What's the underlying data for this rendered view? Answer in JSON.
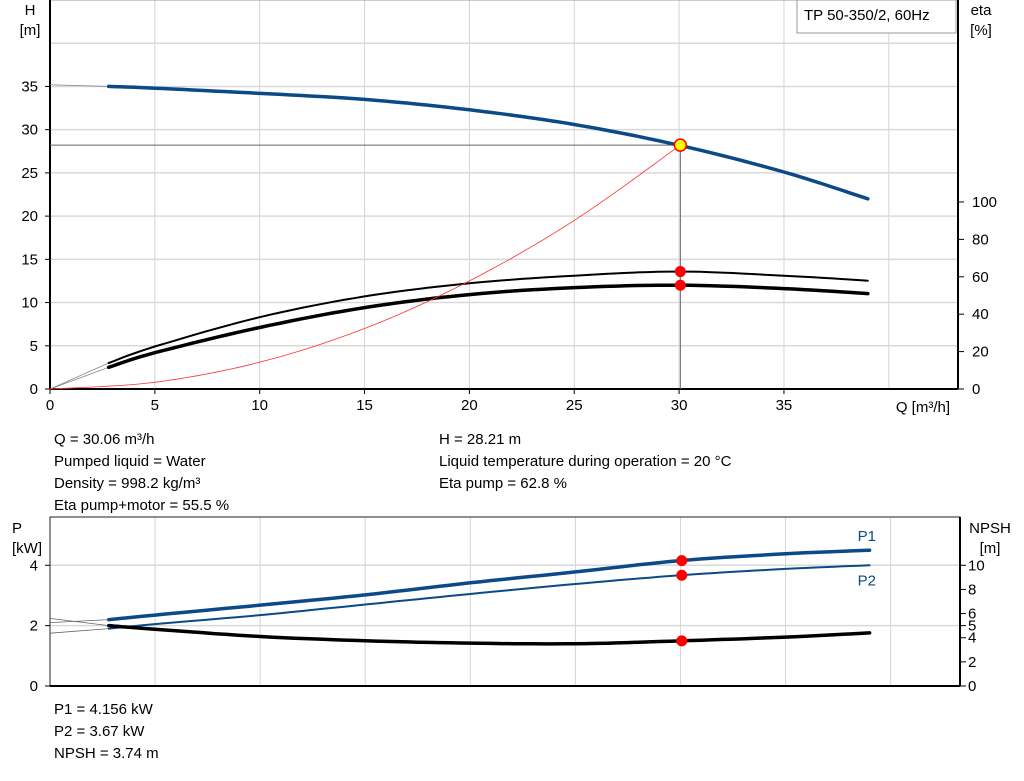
{
  "chart_data": [
    {
      "type": "line",
      "title": "TP 50-350/2, 60Hz",
      "xlabel": "Q [m³/h]",
      "ylabel": "H\n[m]",
      "y2label": "eta\n[%]",
      "xlim": [
        0,
        43.3
      ],
      "ylim": [
        0,
        45
      ],
      "y2lim": [
        0,
        208
      ],
      "x_ticks": [
        0,
        5,
        10,
        15,
        20,
        25,
        30,
        35
      ],
      "y_ticks": [
        0,
        5,
        10,
        15,
        20,
        25,
        30,
        35
      ],
      "y2_ticks": [
        0,
        20,
        40,
        60,
        80,
        100
      ],
      "grid": true,
      "series": [
        {
          "key": "H",
          "axis": "left",
          "color": "#0b4a86",
          "x": [
            2.8,
            5,
            10,
            15,
            20,
            25,
            30,
            35,
            39
          ],
          "y": [
            35.0,
            34.8,
            34.2,
            33.5,
            32.3,
            30.6,
            28.2,
            25.1,
            22.0
          ]
        },
        {
          "key": "eta_pump",
          "axis": "right",
          "color": "#000000",
          "x": [
            2.8,
            5,
            10,
            15,
            20,
            25,
            30,
            35,
            39
          ],
          "y": [
            13.9,
            22.7,
            38.4,
            49.5,
            56.5,
            60.6,
            62.8,
            60.6,
            57.9
          ]
        },
        {
          "key": "eta_total",
          "axis": "right",
          "color": "#000000",
          "x": [
            2.8,
            5,
            10,
            15,
            20,
            25,
            30,
            35,
            39
          ],
          "y": [
            11.6,
            19.4,
            32.9,
            43.5,
            50.5,
            54.2,
            55.5,
            53.7,
            51.0
          ]
        },
        {
          "key": "system_curve",
          "axis": "left",
          "color": "#ff3030",
          "x": [
            0,
            5,
            10,
            15,
            20,
            25,
            30.06
          ],
          "y": [
            0,
            0.78,
            3.1,
            7.0,
            12.5,
            19.5,
            28.21
          ]
        }
      ],
      "duty_point": {
        "Q": 30.06,
        "H": 28.21,
        "eta_pump": 62.8,
        "eta_total": 55.5
      }
    },
    {
      "type": "line",
      "ylabel": "P\n[kW]",
      "y2label": "NPSH\n[m]",
      "xlim": [
        0,
        43.3
      ],
      "ylim": [
        0,
        5.6
      ],
      "y2lim": [
        0,
        14
      ],
      "y_ticks": [
        0,
        2,
        4
      ],
      "y2_ticks": [
        0,
        2,
        4,
        5,
        6,
        8,
        10
      ],
      "grid": true,
      "series": [
        {
          "name": "P1",
          "axis": "left",
          "color": "#0b4a86",
          "x": [
            2.8,
            5,
            10,
            15,
            20,
            25,
            30,
            35,
            39
          ],
          "y": [
            2.2,
            2.35,
            2.68,
            3.02,
            3.42,
            3.78,
            4.156,
            4.38,
            4.5
          ]
        },
        {
          "name": "P2",
          "axis": "left",
          "color": "#0b4a86",
          "x": [
            2.8,
            5,
            10,
            15,
            20,
            25,
            30,
            35,
            39
          ],
          "y": [
            1.9,
            2.05,
            2.35,
            2.7,
            3.05,
            3.38,
            3.67,
            3.88,
            4.0
          ]
        },
        {
          "key": "NPSH",
          "axis": "right",
          "color": "#000000",
          "x": [
            2.8,
            5,
            10,
            15,
            20,
            25,
            30,
            35,
            39
          ],
          "y": [
            5.0,
            4.7,
            4.1,
            3.75,
            3.55,
            3.5,
            3.74,
            4.05,
            4.4
          ]
        }
      ],
      "duty_point": {
        "Q": 30.06,
        "P1": 4.156,
        "P2": 3.67,
        "NPSH": 3.74
      }
    }
  ],
  "info_top_left": [
    "Q = 30.06 m³/h",
    "Pumped liquid = Water",
    "Density = 998.2 kg/m³",
    "Eta pump+motor = 55.5 %"
  ],
  "info_top_right": [
    "H = 28.21 m",
    "Liquid temperature during operation = 20 °C",
    "Eta pump = 62.8 %"
  ],
  "info_bottom": [
    "P1 = 4.156 kW",
    "P2 = 3.67 kW",
    "NPSH = 3.74 m"
  ]
}
